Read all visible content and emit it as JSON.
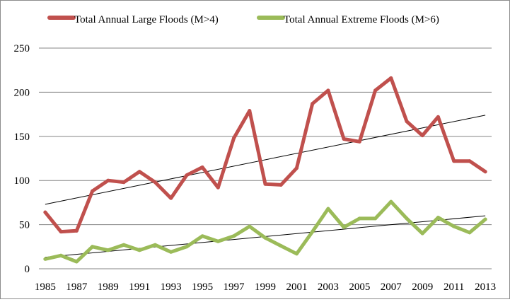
{
  "chart_data": {
    "type": "line",
    "title": "",
    "xlabel": "",
    "ylabel": "",
    "x": [
      1985,
      1986,
      1987,
      1988,
      1989,
      1990,
      1991,
      1992,
      1993,
      1994,
      1995,
      1996,
      1997,
      1998,
      1999,
      2000,
      2001,
      2002,
      2003,
      2004,
      2005,
      2006,
      2007,
      2008,
      2009,
      2010,
      2011,
      2012,
      2013
    ],
    "x_tick_labels": [
      "1985",
      "1987",
      "1989",
      "1991",
      "1993",
      "1995",
      "1997",
      "1999",
      "2001",
      "2003",
      "2005",
      "2007",
      "2009",
      "2011",
      "2013"
    ],
    "y_tick_labels": [
      "0",
      "50",
      "100",
      "150",
      "200",
      "250"
    ],
    "xlim": [
      1984.6,
      2013.4
    ],
    "ylim": [
      0,
      250
    ],
    "grid": "horizontal",
    "legend": "top",
    "series": [
      {
        "name": "Total Annual Large Floods (M>4)",
        "color": "#c0504d",
        "values": [
          64,
          42,
          43,
          88,
          100,
          98,
          110,
          98,
          80,
          106,
          115,
          92,
          148,
          179,
          96,
          95,
          114,
          187,
          202,
          147,
          144,
          202,
          216,
          167,
          151,
          172,
          122,
          122,
          110
        ],
        "trendline": {
          "color": "#000000",
          "start": 73,
          "end": 174
        }
      },
      {
        "name": "Total Annual Extreme Floods (M>6)",
        "color": "#9bbb59",
        "values": [
          11,
          15,
          8,
          25,
          21,
          27,
          21,
          27,
          19,
          25,
          37,
          31,
          37,
          48,
          35,
          26,
          17,
          42,
          68,
          47,
          57,
          57,
          76,
          57,
          40,
          58,
          48,
          41,
          56
        ],
        "trendline": {
          "color": "#000000",
          "start": 13,
          "end": 60
        }
      }
    ]
  }
}
